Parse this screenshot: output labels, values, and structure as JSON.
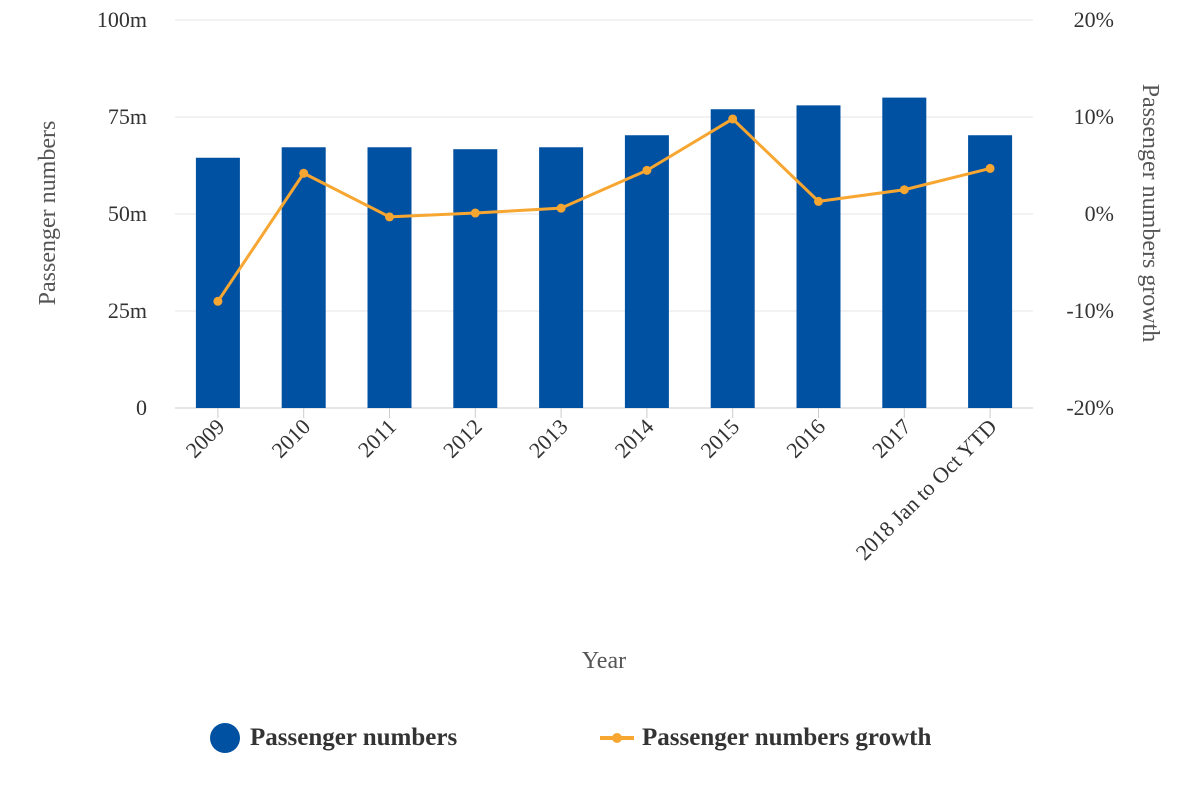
{
  "chart_data": {
    "type": "bar+line",
    "categories": [
      "2009",
      "2010",
      "2011",
      "2012",
      "2013",
      "2014",
      "2015",
      "2016",
      "2017",
      "2018 Jan to Oct YTD"
    ],
    "series": [
      {
        "name": "Passenger numbers",
        "type": "bar",
        "axis": "left",
        "color": "#0051a2",
        "values": [
          64.5,
          67.2,
          67.2,
          66.7,
          67.2,
          70.3,
          77.0,
          78.0,
          80.0,
          70.3
        ]
      },
      {
        "name": "Passenger numbers growth",
        "type": "line",
        "axis": "right",
        "color": "#f7a631",
        "values": [
          -9.0,
          4.2,
          -0.3,
          0.1,
          0.6,
          4.5,
          9.8,
          1.3,
          2.5,
          4.7
        ]
      }
    ],
    "xlabel": "Year",
    "ylabel_left": "Passenger numbers",
    "ylabel_right": "Passenger numbers growth",
    "y_left": {
      "min": 0,
      "max": 100,
      "ticks": [
        0,
        25,
        50,
        75,
        100
      ],
      "tick_labels": [
        "0",
        "25m",
        "50m",
        "75m",
        "100m"
      ]
    },
    "y_right": {
      "min": -20,
      "max": 20,
      "ticks": [
        -20,
        -10,
        0,
        10,
        20
      ],
      "tick_labels": [
        "-20%",
        "-10%",
        "0%",
        "10%",
        "20%"
      ]
    },
    "grid": true,
    "legend_position": "bottom"
  }
}
